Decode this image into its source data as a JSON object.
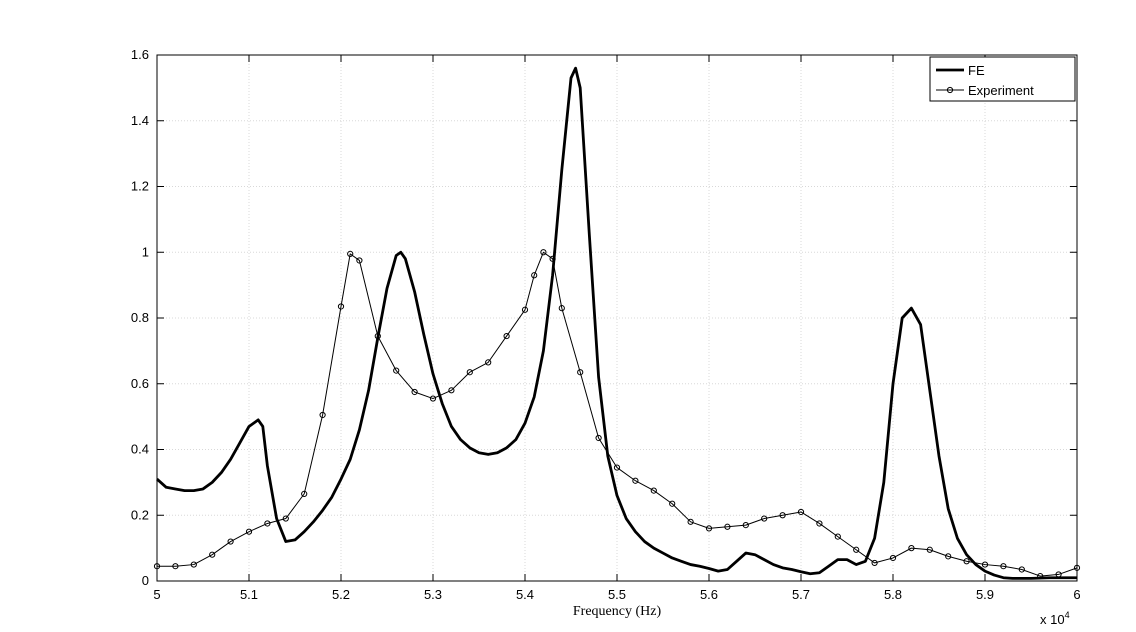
{
  "chart_data": {
    "type": "line",
    "xlabel": "Frequency (Hz)",
    "x_multiplier": "x 10",
    "x_multiplier_exponent": "4",
    "xlim": [
      5,
      6
    ],
    "xticks": [
      5,
      5.1,
      5.2,
      5.3,
      5.4,
      5.5,
      5.6,
      5.7,
      5.8,
      5.9,
      6
    ],
    "ylim": [
      0,
      1.6
    ],
    "yticks": [
      0,
      0.2,
      0.4,
      0.6,
      0.8,
      1,
      1.2,
      1.4,
      1.6
    ],
    "grid": true,
    "legend": "upper right",
    "series": [
      {
        "name": "FE",
        "color": "#000000",
        "marker": "none",
        "x": [
          5.0,
          5.01,
          5.02,
          5.03,
          5.04,
          5.05,
          5.06,
          5.07,
          5.08,
          5.09,
          5.1,
          5.11,
          5.115,
          5.12,
          5.13,
          5.14,
          5.15,
          5.16,
          5.17,
          5.18,
          5.19,
          5.2,
          5.21,
          5.22,
          5.23,
          5.24,
          5.25,
          5.26,
          5.265,
          5.27,
          5.28,
          5.29,
          5.3,
          5.31,
          5.32,
          5.33,
          5.34,
          5.35,
          5.36,
          5.37,
          5.38,
          5.39,
          5.4,
          5.41,
          5.42,
          5.43,
          5.44,
          5.45,
          5.455,
          5.46,
          5.47,
          5.48,
          5.49,
          5.5,
          5.51,
          5.52,
          5.53,
          5.54,
          5.55,
          5.56,
          5.57,
          5.58,
          5.59,
          5.6,
          5.61,
          5.62,
          5.63,
          5.64,
          5.65,
          5.66,
          5.67,
          5.68,
          5.69,
          5.7,
          5.71,
          5.72,
          5.73,
          5.74,
          5.75,
          5.76,
          5.77,
          5.78,
          5.79,
          5.8,
          5.81,
          5.82,
          5.83,
          5.84,
          5.85,
          5.86,
          5.87,
          5.88,
          5.89,
          5.9,
          5.91,
          5.92,
          5.93,
          5.95,
          5.97,
          6.0
        ],
        "values": [
          0.31,
          0.285,
          0.28,
          0.275,
          0.275,
          0.28,
          0.3,
          0.33,
          0.37,
          0.42,
          0.47,
          0.49,
          0.47,
          0.35,
          0.19,
          0.12,
          0.125,
          0.15,
          0.18,
          0.215,
          0.255,
          0.31,
          0.37,
          0.46,
          0.58,
          0.74,
          0.89,
          0.99,
          1.0,
          0.98,
          0.88,
          0.75,
          0.63,
          0.54,
          0.47,
          0.43,
          0.405,
          0.39,
          0.385,
          0.39,
          0.405,
          0.43,
          0.48,
          0.56,
          0.7,
          0.93,
          1.25,
          1.53,
          1.56,
          1.5,
          1.05,
          0.62,
          0.38,
          0.26,
          0.19,
          0.15,
          0.12,
          0.1,
          0.085,
          0.07,
          0.06,
          0.05,
          0.045,
          0.038,
          0.03,
          0.035,
          0.06,
          0.085,
          0.08,
          0.065,
          0.05,
          0.04,
          0.035,
          0.028,
          0.022,
          0.025,
          0.045,
          0.065,
          0.065,
          0.05,
          0.06,
          0.13,
          0.3,
          0.6,
          0.8,
          0.83,
          0.78,
          0.58,
          0.38,
          0.22,
          0.13,
          0.08,
          0.05,
          0.03,
          0.018,
          0.01,
          0.008,
          0.008,
          0.01,
          0.01
        ]
      },
      {
        "name": "Experiment",
        "color": "#000000",
        "marker": "circle",
        "x": [
          5.0,
          5.02,
          5.04,
          5.06,
          5.08,
          5.1,
          5.12,
          5.14,
          5.16,
          5.18,
          5.2,
          5.21,
          5.22,
          5.24,
          5.26,
          5.28,
          5.3,
          5.32,
          5.34,
          5.36,
          5.38,
          5.4,
          5.41,
          5.42,
          5.43,
          5.44,
          5.46,
          5.48,
          5.5,
          5.52,
          5.54,
          5.56,
          5.58,
          5.6,
          5.62,
          5.64,
          5.66,
          5.68,
          5.7,
          5.72,
          5.74,
          5.76,
          5.78,
          5.8,
          5.82,
          5.84,
          5.86,
          5.88,
          5.9,
          5.92,
          5.94,
          5.96,
          5.98,
          6.0
        ],
        "values": [
          0.045,
          0.045,
          0.05,
          0.08,
          0.12,
          0.15,
          0.175,
          0.19,
          0.265,
          0.505,
          0.835,
          0.995,
          0.975,
          0.745,
          0.64,
          0.575,
          0.555,
          0.58,
          0.635,
          0.665,
          0.745,
          0.825,
          0.93,
          1.0,
          0.98,
          0.83,
          0.635,
          0.435,
          0.345,
          0.305,
          0.275,
          0.235,
          0.18,
          0.16,
          0.165,
          0.17,
          0.19,
          0.2,
          0.21,
          0.175,
          0.135,
          0.095,
          0.055,
          0.07,
          0.1,
          0.095,
          0.075,
          0.06,
          0.05,
          0.045,
          0.035,
          0.015,
          0.02,
          0.04
        ]
      }
    ]
  }
}
